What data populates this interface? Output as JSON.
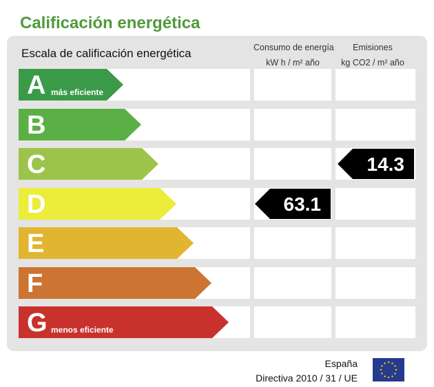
{
  "title": "Calificación energética",
  "scale_heading": "Escala de calificación energética",
  "columns": {
    "consumption": {
      "line1": "Consumo de energía",
      "line2": "kW h / m² año"
    },
    "emissions": {
      "line1": "Emisiones",
      "line2": "kg CO2 / m² año"
    }
  },
  "ratings": [
    {
      "letter": "A",
      "caption": "más eficiente",
      "color": "#3b9a48"
    },
    {
      "letter": "B",
      "caption": "",
      "color": "#5aaf45"
    },
    {
      "letter": "C",
      "caption": "",
      "color": "#9dc44a"
    },
    {
      "letter": "D",
      "caption": "",
      "color": "#ecec3a"
    },
    {
      "letter": "E",
      "caption": "",
      "color": "#e2b531"
    },
    {
      "letter": "F",
      "caption": "",
      "color": "#cc7432"
    },
    {
      "letter": "G",
      "caption": "menos eficiente",
      "color": "#c8312c"
    }
  ],
  "consumption_value": "63.1",
  "consumption_rating": "D",
  "emissions_value": "14.3",
  "emissions_rating": "C",
  "footer": {
    "country": "España",
    "directive": "Directiva 2010 / 31 / UE"
  },
  "colors": {
    "title": "#4f9a3b",
    "panel": "#e4e4e4",
    "eu_flag_blue": "#253b8f",
    "eu_flag_star": "#ffdd00"
  }
}
